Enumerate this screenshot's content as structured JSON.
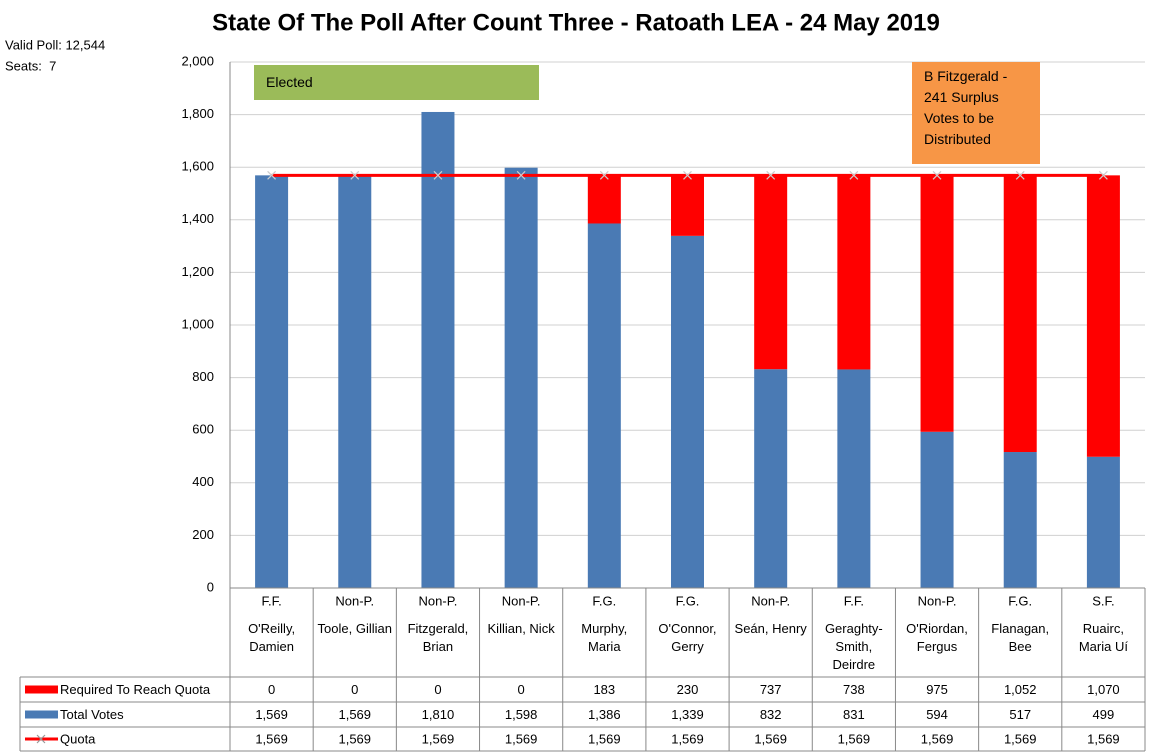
{
  "chart_data": {
    "type": "bar",
    "stacked": true,
    "title": "State Of The Poll After Count Three - Ratoath LEA - 24 May 2019",
    "annotations": [
      "Valid Poll: 12,544",
      "Seats:  7",
      "Elected",
      "B Fitzgerald - 241 Surplus Votes to be Distributed"
    ],
    "parties": [
      "F.F.",
      "Non-P.",
      "Non-P.",
      "Non-P.",
      "F.G.",
      "F.G.",
      "Non-P.",
      "F.F.",
      "Non-P.",
      "F.G.",
      "S.F."
    ],
    "categories": [
      "O'Reilly, Damien",
      "Toole, Gillian",
      "Fitzgerald, Brian",
      "Killian, Nick",
      "Murphy, Maria",
      "O'Connor, Gerry",
      "Seán, Henry",
      "Geraghty-Smith, Deirdre",
      "O'Riordan, Fergus",
      "Flanagan, Bee",
      "Ruairc, Maria Uí"
    ],
    "series": [
      {
        "name": "Required To Reach Quota",
        "color": "#ff0000",
        "kind": "bar",
        "values": [
          0,
          0,
          0,
          0,
          183,
          230,
          737,
          738,
          975,
          1052,
          1070
        ],
        "value_labels": [
          "0",
          "0",
          "0",
          "0",
          "183",
          "230",
          "737",
          "738",
          "975",
          "1,052",
          "1,070"
        ]
      },
      {
        "name": "Total Votes",
        "color": "#4a7ab4",
        "kind": "bar",
        "values": [
          1569,
          1569,
          1810,
          1598,
          1386,
          1339,
          832,
          831,
          594,
          517,
          499
        ],
        "value_labels": [
          "1,569",
          "1,569",
          "1,810",
          "1,598",
          "1,386",
          "1,339",
          "832",
          "831",
          "594",
          "517",
          "499"
        ]
      },
      {
        "name": "Quota",
        "color": "#ff0000",
        "kind": "line",
        "values": [
          1569,
          1569,
          1569,
          1569,
          1569,
          1569,
          1569,
          1569,
          1569,
          1569,
          1569
        ],
        "value_labels": [
          "1,569",
          "1,569",
          "1,569",
          "1,569",
          "1,569",
          "1,569",
          "1,569",
          "1,569",
          "1,569",
          "1,569",
          "1,569"
        ]
      }
    ],
    "ylim": [
      0,
      2000
    ],
    "yticks": [
      0,
      200,
      400,
      600,
      800,
      {
        "value": 1000,
        "label": "1,000"
      },
      {
        "value": 1200,
        "label": "1,200"
      },
      {
        "value": 1400,
        "label": "1,400"
      },
      {
        "value": 1600,
        "label": "1,600"
      },
      {
        "value": 1800,
        "label": "1,800"
      },
      {
        "value": 2000,
        "label": "2,000"
      }
    ],
    "grid": true
  }
}
